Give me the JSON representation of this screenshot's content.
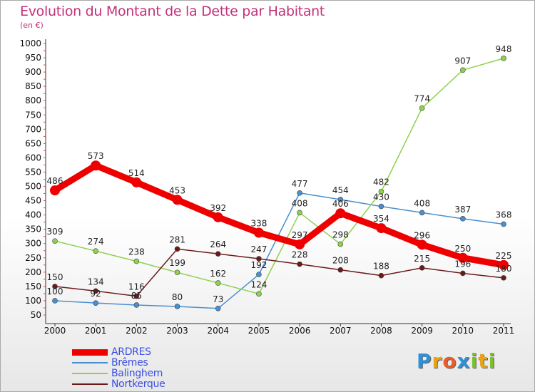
{
  "chart_data": {
    "type": "line",
    "title": "Evolution du Montant de la Dette par Habitant",
    "unit_label": "(en €)",
    "x": [
      "2000",
      "2001",
      "2002",
      "2003",
      "2004",
      "2005",
      "2006",
      "2007",
      "2008",
      "2009",
      "2010",
      "2011"
    ],
    "ylim": [
      50,
      1000
    ],
    "yticks": [
      50,
      100,
      150,
      200,
      250,
      300,
      350,
      400,
      450,
      500,
      550,
      600,
      650,
      700,
      750,
      800,
      850,
      900,
      950,
      1000
    ],
    "grid": false,
    "legend_position": "bottom-left",
    "series": [
      {
        "name": "ARDRES",
        "color": "#ee0000",
        "values": [
          486,
          573,
          514,
          453,
          392,
          338,
          297,
          406,
          354,
          296,
          250,
          225
        ]
      },
      {
        "name": "Brêmes",
        "color": "#4a8fcf",
        "values": [
          100,
          92,
          85,
          80,
          73,
          192,
          477,
          454,
          430,
          408,
          387,
          368
        ]
      },
      {
        "name": "Balinghem",
        "color": "#8fd14f",
        "values": [
          309,
          274,
          238,
          199,
          162,
          124,
          408,
          298,
          482,
          774,
          907,
          948
        ]
      },
      {
        "name": "Nortkerque",
        "color": "#6b1a1a",
        "values": [
          150,
          134,
          116,
          281,
          264,
          247,
          228,
          208,
          188,
          215,
          196,
          180
        ]
      }
    ]
  },
  "logo": {
    "letters": [
      "P",
      "r",
      "o",
      "x",
      "i",
      "t",
      "i"
    ],
    "colors": [
      "#2f8fd8",
      "#e8a317",
      "#e85d2a",
      "#2f8fd8",
      "#7cbf2f",
      "#e8a317",
      "#7cbf2f"
    ]
  }
}
